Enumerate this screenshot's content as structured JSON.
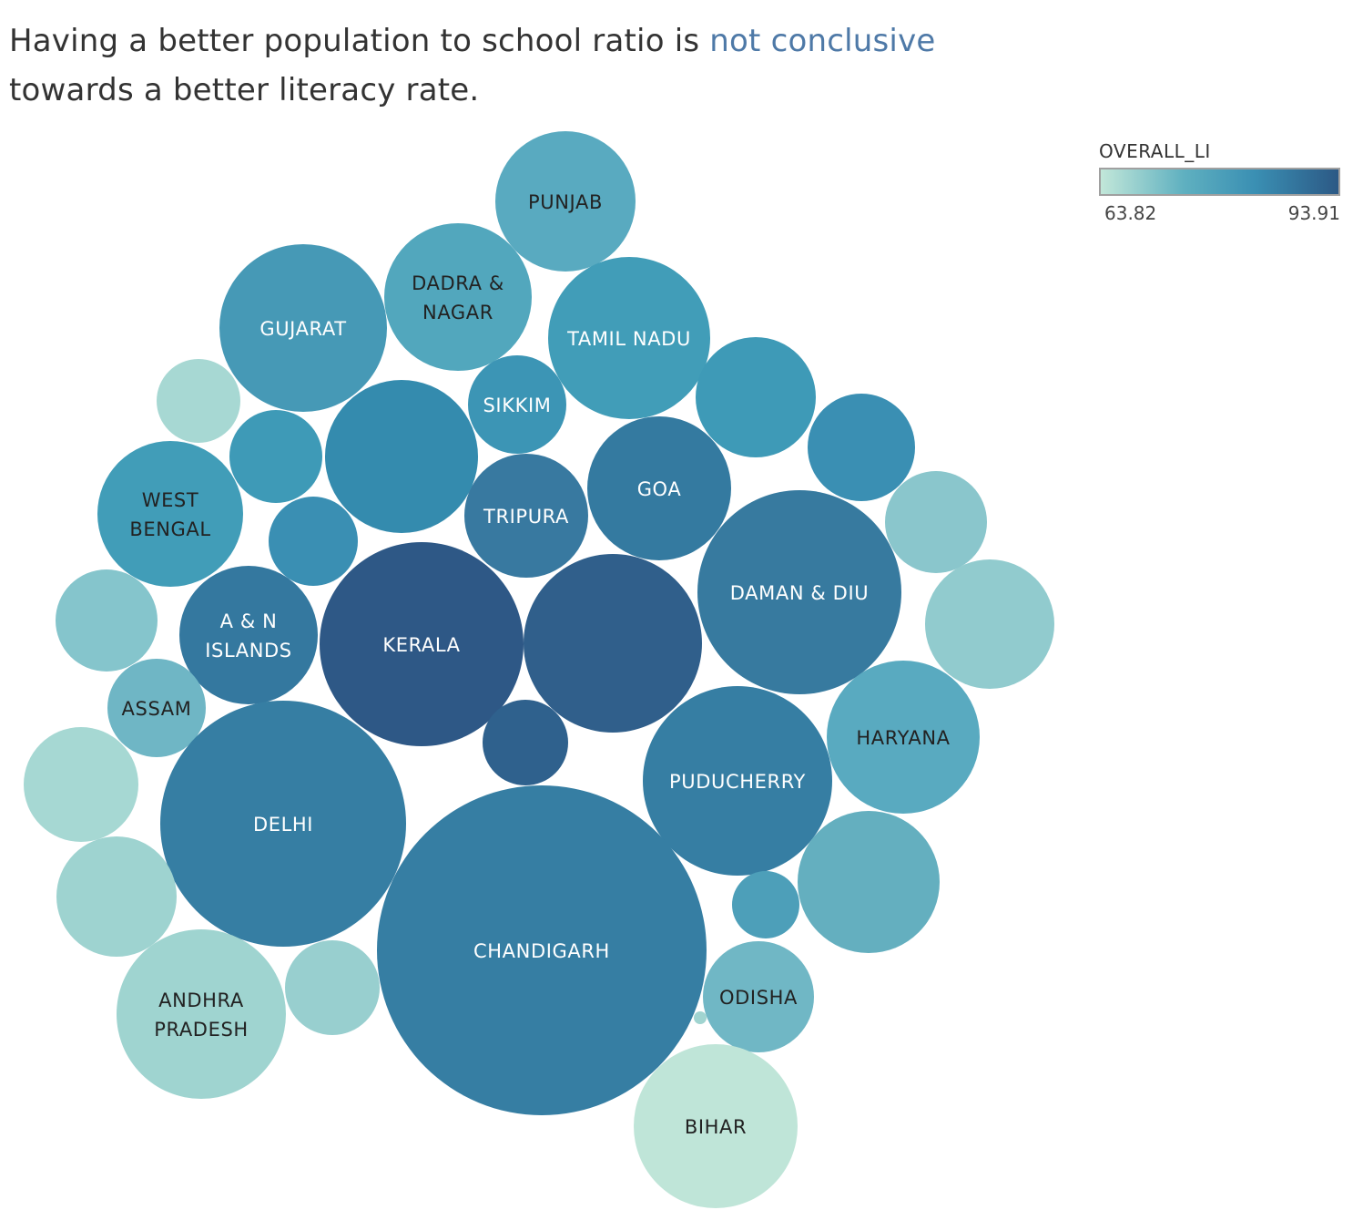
{
  "header": {
    "title_part1": "Having a better population to school ratio is ",
    "title_highlight": "not conclusive",
    "title_part2": "towards a better literacy rate."
  },
  "legend": {
    "title": "OVERALL_LI",
    "min": "63.82",
    "max": "93.91",
    "colors": [
      "#c2e7d9",
      "#5fb0c0",
      "#3a8fb3",
      "#2c5985"
    ]
  },
  "chart_data": {
    "type": "bubble",
    "color_field": "OVERALL_LI",
    "color_range": [
      63.82,
      93.91
    ],
    "bubbles": [
      {
        "label": "PUNJAB",
        "color": "#59aac0"
      },
      {
        "label": "DADRA & NAGAR",
        "color": "#52a7bd"
      },
      {
        "label": "GUJARAT",
        "color": "#4699b6"
      },
      {
        "label": "TAMIL NADU",
        "color": "#419db8"
      },
      {
        "label": "",
        "color": "#a7d8d3"
      },
      {
        "label": "SIKKIM",
        "color": "#3c95b5"
      },
      {
        "label": "",
        "color": "#3e9ab7"
      },
      {
        "label": "",
        "color": "#3e9ab7"
      },
      {
        "label": "",
        "color": "#348bae"
      },
      {
        "label": "WEST BENGAL",
        "color": "#419db8"
      },
      {
        "label": "",
        "color": "#3a8fb3"
      },
      {
        "label": "TRIPURA",
        "color": "#3879a0"
      },
      {
        "label": "GOA",
        "color": "#347aa0"
      },
      {
        "label": "",
        "color": "#3a8fb3"
      },
      {
        "label": "",
        "color": "#8ac6cc"
      },
      {
        "label": "DAMAN & DIU",
        "color": "#377a9f"
      },
      {
        "label": "",
        "color": "#91cbce"
      },
      {
        "label": "",
        "color": "#85c5cc"
      },
      {
        "label": "A & N ISLANDS",
        "color": "#34789f"
      },
      {
        "label": "KERALA",
        "color": "#2e5886"
      },
      {
        "label": "",
        "color": "#305f8b"
      },
      {
        "label": "ASSAM",
        "color": "#6fb6c5"
      },
      {
        "label": "HARYANA",
        "color": "#59aac0"
      },
      {
        "label": "",
        "color": "#a6d8d3"
      },
      {
        "label": "",
        "color": "#2f618d"
      },
      {
        "label": "PUDUCHERRY",
        "color": "#367ea3"
      },
      {
        "label": "DELHI",
        "color": "#367ea3"
      },
      {
        "label": "",
        "color": "#9ed3d0"
      },
      {
        "label": "",
        "color": "#64afbf"
      },
      {
        "label": "",
        "color": "#4d9fb9"
      },
      {
        "label": "CHANDIGARH",
        "color": "#367ea3"
      },
      {
        "label": "ANDHRA PRADESH",
        "color": "#9fd4d0"
      },
      {
        "label": "",
        "color": "#98cfcf"
      },
      {
        "label": "ODISHA",
        "color": "#70b7c5"
      },
      {
        "label": "",
        "color": "#a0d4d0"
      },
      {
        "label": "BIHAR",
        "color": "#bfe5d8"
      }
    ]
  }
}
